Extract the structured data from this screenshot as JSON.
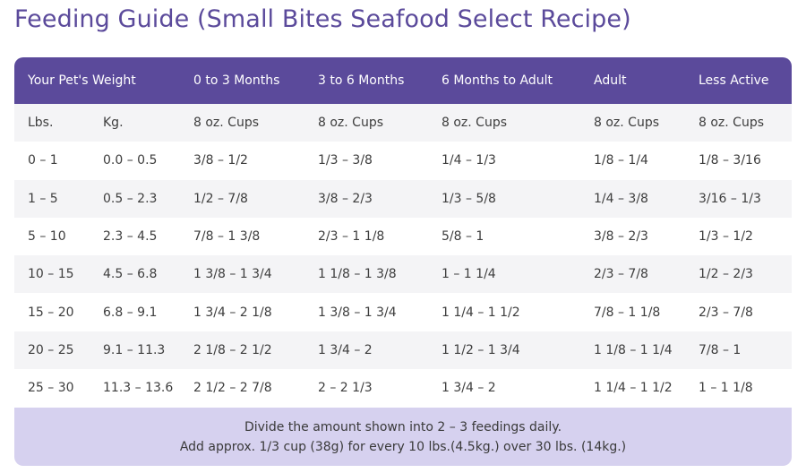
{
  "title": "Feeding Guide (Small Bites Seafood Select Recipe)",
  "table": {
    "headers": [
      "Your Pet's Weight",
      "",
      "0 to 3 Months",
      "3 to 6 Months",
      "6 Months to Adult",
      "Adult",
      "Less Active"
    ],
    "subheaders": [
      "Lbs.",
      "Kg.",
      "8 oz. Cups",
      "8 oz. Cups",
      "8 oz. Cups",
      "8 oz. Cups",
      "8 oz. Cups"
    ],
    "rows": [
      [
        "0 – 1",
        "0.0 – 0.5",
        "3/8 – 1/2",
        "1/3 – 3/8",
        "1/4 – 1/3",
        "1/8 – 1/4",
        "1/8 – 3/16"
      ],
      [
        "1 – 5",
        "0.5 – 2.3",
        "1/2 – 7/8",
        "3/8 – 2/3",
        "1/3 – 5/8",
        "1/4 – 3/8",
        "3/16 – 1/3"
      ],
      [
        "5 – 10",
        "2.3 – 4.5",
        "7/8 – 1 3/8",
        "2/3 – 1 1/8",
        "5/8 – 1",
        "3/8 – 2/3",
        "1/3 – 1/2"
      ],
      [
        "10 – 15",
        "4.5 – 6.8",
        "1 3/8 – 1 3/4",
        "1 1/8 – 1 3/8",
        "1 – 1 1/4",
        "2/3 – 7/8",
        "1/2 – 2/3"
      ],
      [
        "15 – 20",
        "6.8 – 9.1",
        "1 3/4 – 2 1/8",
        "1 3/8 – 1 3/4",
        "1 1/4 – 1 1/2",
        "7/8 – 1 1/8",
        "2/3 – 7/8"
      ],
      [
        "20 – 25",
        "9.1 – 11.3",
        "2 1/8 – 2 1/2",
        "1 3/4 – 2",
        "1 1/2 – 1 3/4",
        "1 1/8 – 1 1/4",
        "7/8 – 1"
      ],
      [
        "25 – 30",
        "11.3 – 13.6",
        "2 1/2 – 2 7/8",
        "2 – 2 1/3",
        "1 3/4 – 2",
        "1 1/4 – 1 1/2",
        "1 – 1 1/8"
      ]
    ]
  },
  "footer": {
    "line1": "Divide the amount shown into 2 – 3 feedings daily.",
    "line2": "Add approx. 1/3 cup (38g) for every 10 lbs.(4.5kg.) over 30 lbs. (14kg.)"
  },
  "colors": {
    "header_bg": "#5b4a9b",
    "title": "#5b4a9b",
    "footer_bg": "#d6d1ef",
    "row_alt": "#f4f4f6"
  }
}
